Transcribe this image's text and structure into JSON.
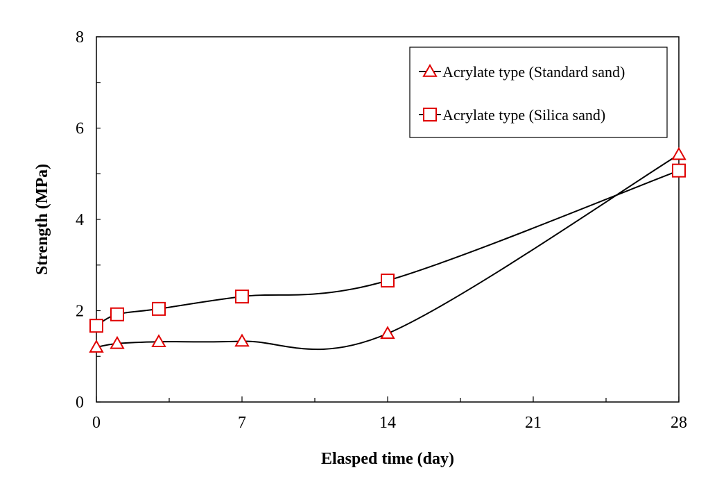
{
  "chart_data": {
    "type": "line",
    "xlabel": "Elasped time (day)",
    "ylabel": "Strength (MPa)",
    "xlim": [
      0,
      28
    ],
    "ylim": [
      0,
      8
    ],
    "x_ticks": [
      0,
      7,
      14,
      21,
      28
    ],
    "y_ticks": [
      0,
      2,
      4,
      6,
      8
    ],
    "x_tick_labels": [
      "0",
      "7",
      "14",
      "21",
      "28"
    ],
    "y_tick_labels": [
      "0",
      "2",
      "4",
      "6",
      "8"
    ],
    "grid": false,
    "legend_position": "top-right",
    "series": [
      {
        "name": "Acrylate type (Standard sand)",
        "marker": "triangle",
        "color": "#e00000",
        "line_color": "#000000",
        "x": [
          0,
          1,
          3,
          7,
          14,
          28
        ],
        "y": [
          1.2,
          1.28,
          1.32,
          1.33,
          1.5,
          5.42
        ]
      },
      {
        "name": "Acrylate type (Silica sand)",
        "marker": "square",
        "color": "#e00000",
        "line_color": "#000000",
        "x": [
          0,
          1,
          3,
          7,
          14,
          28
        ],
        "y": [
          1.67,
          1.92,
          2.04,
          2.31,
          2.66,
          5.07
        ]
      }
    ]
  }
}
